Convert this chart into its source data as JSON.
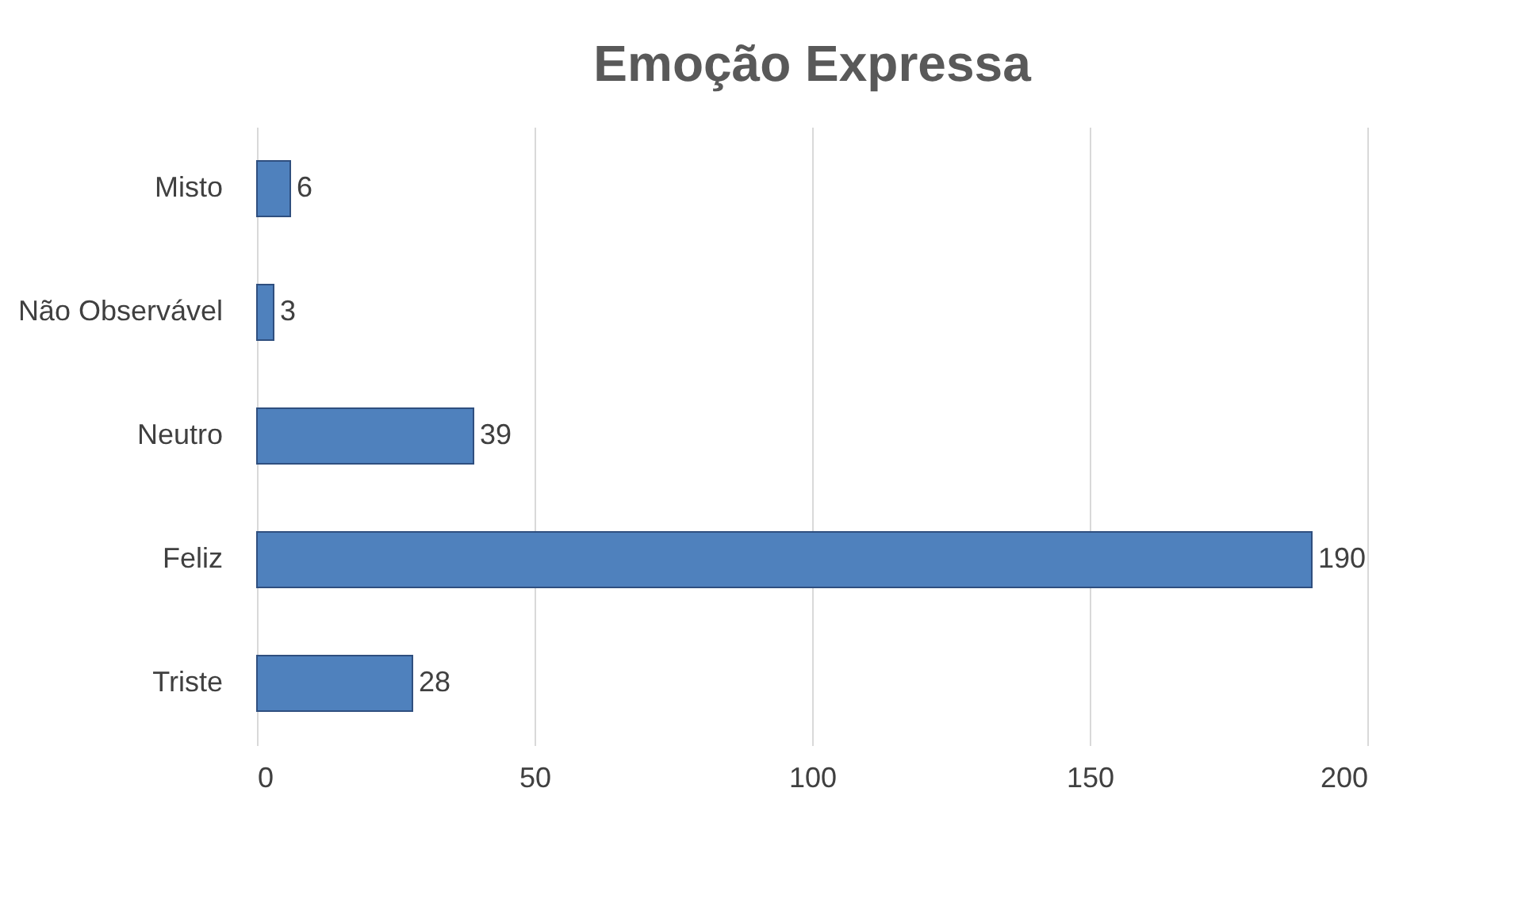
{
  "chart_data": {
    "type": "bar",
    "orientation": "horizontal",
    "title": "Emoção Expressa",
    "categories": [
      "Misto",
      "Não Observável",
      "Neutro",
      "Feliz",
      "Triste"
    ],
    "values": [
      6,
      3,
      39,
      190,
      28
    ],
    "color": "#4f81bd",
    "xlim": [
      0,
      200
    ],
    "xticks": [
      0,
      50,
      100,
      150,
      200
    ],
    "grid": "x",
    "data_labels": true
  }
}
